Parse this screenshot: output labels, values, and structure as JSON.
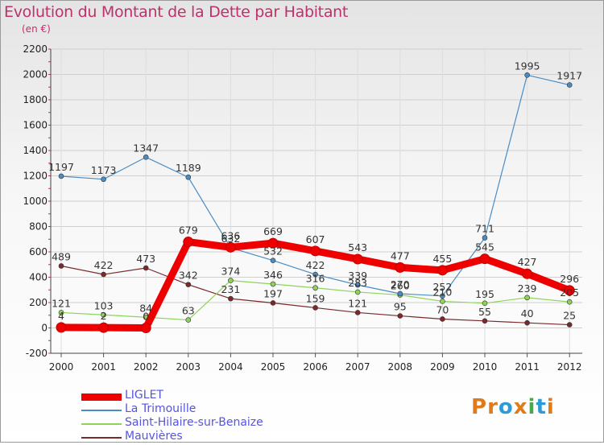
{
  "title": "Evolution du Montant de la Dette par Habitant",
  "subtitle": "(en €)",
  "logo": {
    "text": "Proxiti",
    "letters": [
      "P",
      "r",
      "o",
      "x",
      "i",
      "t",
      "i"
    ],
    "colors": [
      "#e07b1a",
      "#e07b1a",
      "#2f9bd6",
      "#e07b1a",
      "#4aa84a",
      "#2f9bd6",
      "#e07b1a"
    ]
  },
  "chart_data": {
    "type": "line",
    "x": [
      "2000",
      "2001",
      "2002",
      "2003",
      "2004",
      "2005",
      "2006",
      "2007",
      "2008",
      "2009",
      "2010",
      "2011",
      "2012"
    ],
    "ylim": [
      -200,
      2200
    ],
    "yticks": [
      -200,
      0,
      200,
      400,
      600,
      800,
      1000,
      1200,
      1400,
      1600,
      1800,
      2000,
      2200
    ],
    "grid": true,
    "legend_position": "bottom-left",
    "series": [
      {
        "name": "Mauvières",
        "color": "#7a2a2a",
        "width": 1.2,
        "marker": 3,
        "labelPos": "above",
        "values": [
          489,
          422,
          473,
          342,
          231,
          197,
          159,
          121,
          95,
          70,
          55,
          40,
          25
        ]
      },
      {
        "name": "Saint-Hilaire-sur-Benaize",
        "color": "#8dd35a",
        "width": 1.2,
        "marker": 3,
        "labelPos": "above",
        "values": [
          121,
          103,
          84,
          63,
          374,
          346,
          316,
          283,
          260,
          210,
          195,
          239,
          205
        ]
      },
      {
        "name": "La Trimouille",
        "color": "#4a8cc4",
        "width": 1.2,
        "marker": 3,
        "labelPos": "above",
        "values": [
          1197,
          1173,
          1347,
          1189,
          632,
          532,
          422,
          339,
          270,
          252,
          711,
          1995,
          1917
        ]
      },
      {
        "name": "LIGLET",
        "color": "#ee0000",
        "width": 9,
        "marker": 6,
        "labelPos": "above",
        "values": [
          4,
          2,
          0,
          679,
          636,
          669,
          607,
          543,
          477,
          455,
          545,
          427,
          296
        ]
      }
    ],
    "legend_order": [
      "LIGLET",
      "La Trimouille",
      "Saint-Hilaire-sur-Benaize",
      "Mauvières"
    ]
  }
}
